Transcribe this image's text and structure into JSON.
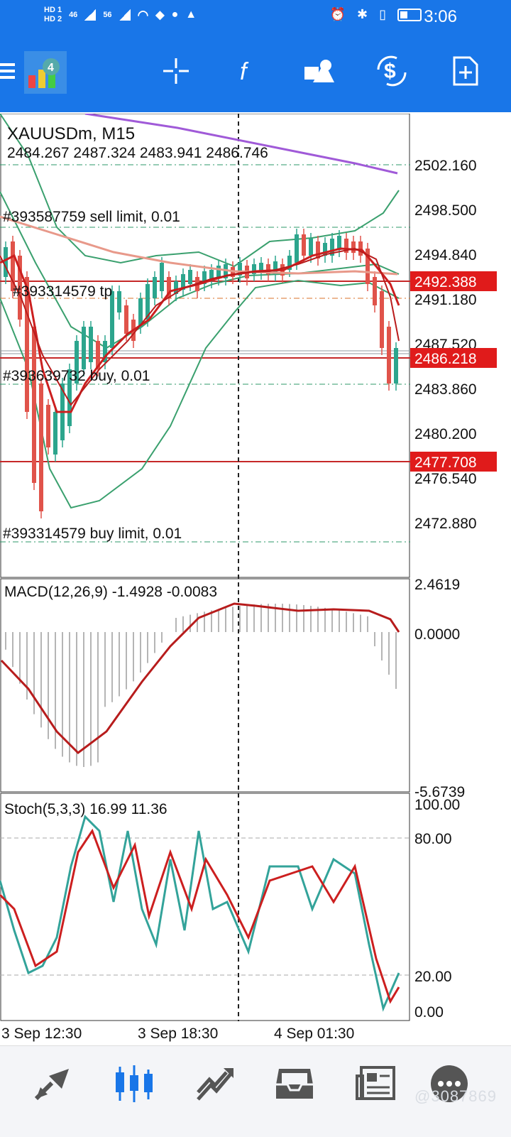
{
  "status_bar": {
    "sim1": "HD 1",
    "sim2": "HD 2",
    "net1": "46",
    "net2": "56",
    "time": "3:06"
  },
  "toolbar": {
    "icons": [
      "menu-icon",
      "app-logo",
      "crosshair-icon",
      "indicators-icon",
      "objects-icon",
      "trade-icon",
      "new-order-icon"
    ]
  },
  "chart": {
    "symbol_title": "XAUUSDm, M15",
    "ohlc": "2484.267 2487.324 2483.941 2486.746",
    "orders": [
      {
        "label": "#393587759 sell limit, 0.01"
      },
      {
        "label": "#393314579 tp"
      },
      {
        "label": "#393639732 buy, 0.01"
      },
      {
        "label": "#393314579 buy limit, 0.01"
      }
    ],
    "price_ticks": [
      "2502.160",
      "2498.500",
      "2494.840",
      "2491.180",
      "2487.520",
      "2483.860",
      "2480.200",
      "2476.540",
      "2472.880"
    ],
    "price_badges": [
      "2492.388",
      "2486.218",
      "2477.708"
    ],
    "macd": {
      "label": "MACD(12,26,9) -1.4928 -0.0083",
      "ticks": [
        "2.4619",
        "0.0000",
        "-5.6739"
      ]
    },
    "stoch": {
      "label": "Stoch(5,3,3) 16.99 11.36",
      "ticks": [
        "100.00",
        "80.00",
        "20.00",
        "0.00"
      ]
    },
    "time_ticks": [
      "3 Sep 12:30",
      "3 Sep 18:30",
      "4 Sep 01:30"
    ]
  },
  "bottom_nav": {
    "items": [
      "quotes-icon",
      "chart-icon",
      "trade-icon",
      "history-icon",
      "news-icon",
      "chat-icon"
    ]
  },
  "watermark": "@3087869",
  "colors": {
    "accent_blue": "#1976e8",
    "bull_green": "#2ca58d",
    "bear_red": "#d32f2f",
    "ma_purple": "#a05ad8",
    "ma_salmon": "#e89a8a"
  }
}
